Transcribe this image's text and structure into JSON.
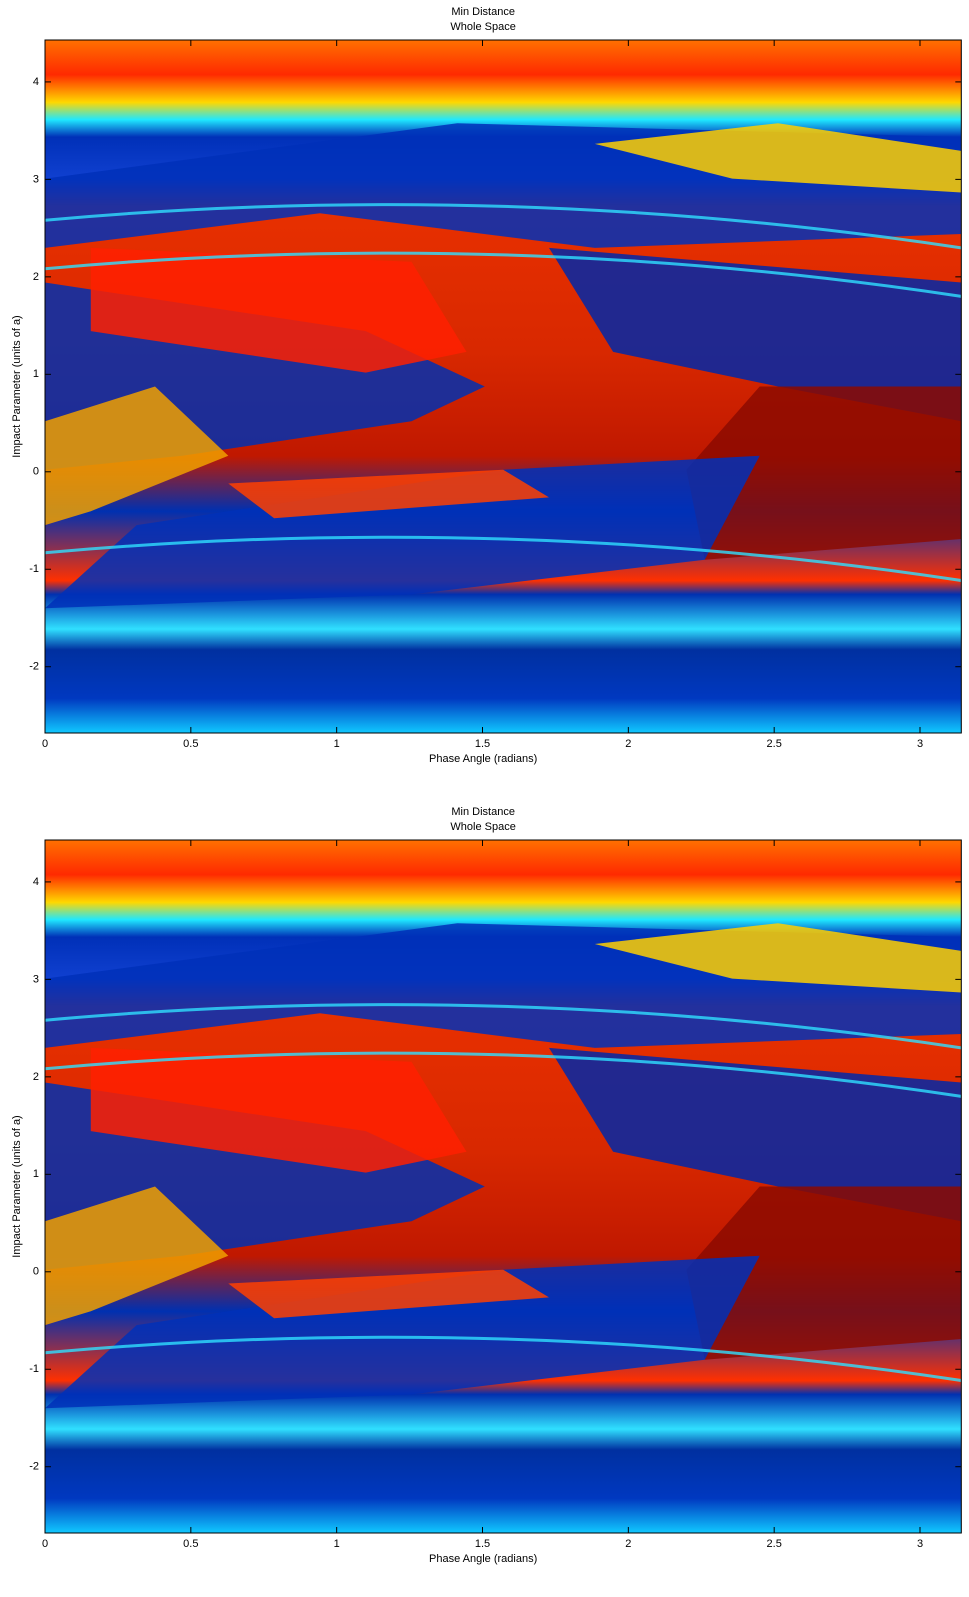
{
  "chart_data": [
    {
      "type": "image",
      "title": "Min Distance",
      "subtitle": "Whole Space",
      "xlabel": "Phase Angle (radians)",
      "ylabel": "Impact Parameter (units of a)",
      "xlim": [
        0,
        3.1416
      ],
      "ylim": [
        -2.68,
        4.43
      ],
      "xticks": [
        0,
        0.5,
        1,
        1.5,
        2,
        2.5,
        3
      ],
      "yticks": [
        -2,
        -1,
        0,
        1,
        2,
        3,
        4
      ]
    },
    {
      "type": "image",
      "title": "Min Distance",
      "subtitle": "Whole Space",
      "xlabel": "Phase Angle (radians)",
      "ylabel": "Impact Parameter (units of a)",
      "xlim": [
        0,
        3.1416
      ],
      "ylim": [
        -2.68,
        4.43
      ],
      "xticks": [
        0,
        0.5,
        1,
        1.5,
        2,
        2.5,
        3
      ],
      "yticks": [
        -2,
        -1,
        0,
        1,
        2,
        3,
        4
      ]
    }
  ]
}
